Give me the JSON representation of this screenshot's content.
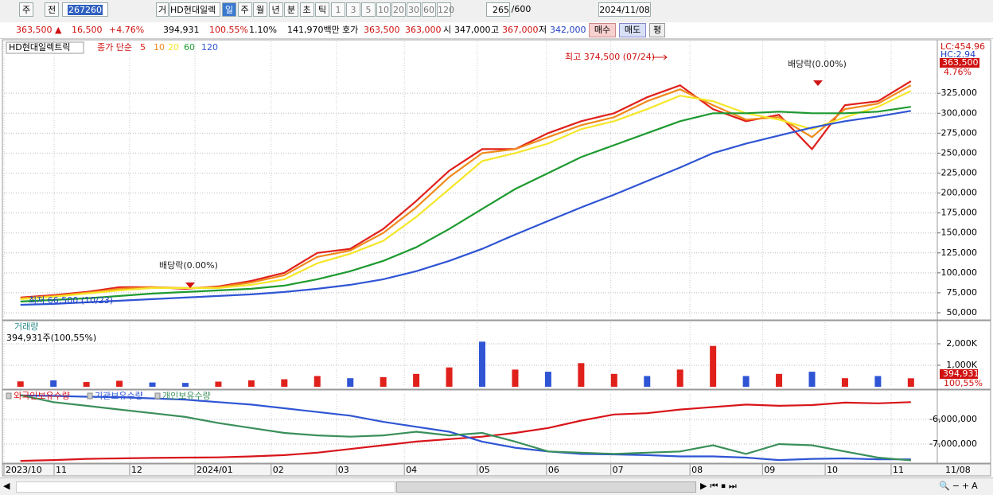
{
  "toolbar": {
    "period_button": "주",
    "full_button": "전",
    "code": "267260",
    "trade_button": "거",
    "name": "HD현대일렉",
    "periods": [
      "일",
      "주",
      "월",
      "년",
      "분",
      "초",
      "틱"
    ],
    "intervals": [
      "1",
      "3",
      "5",
      "10",
      "20",
      "30",
      "60",
      "120"
    ],
    "count": "265",
    "max_count": "/600",
    "date": "2024/11/08"
  },
  "quote": {
    "price": "363,500 ▲",
    "change": "16,500",
    "change_pct": "+4.76%",
    "volume": "394,931",
    "volume_ratio": "100.55%",
    "turnover": "1.10%",
    "amount": "141,970백만",
    "bid_label": "호가",
    "ask": "363,500",
    "bid": "363,000",
    "open_label": "시",
    "open": "347,000",
    "high_label": "고",
    "high": "367,000",
    "low_label": "저",
    "low": "342,000",
    "buy": "매수",
    "sell": "매도",
    "avg": "평"
  },
  "chart_data": [
    {
      "type": "line",
      "title": "HD현대일렉트릭",
      "subtitle": "종가 단순",
      "grid": true,
      "x": [
        0,
        1,
        2,
        3,
        4,
        5,
        6,
        7,
        8,
        9,
        10,
        11,
        12,
        13,
        14,
        15,
        16,
        17,
        18,
        19,
        20,
        21,
        22,
        23,
        24,
        25,
        26,
        27
      ],
      "xlim": [
        -0.5,
        27.8
      ],
      "xticks": [
        {
          "value": -0.5,
          "label": "2023/10"
        },
        {
          "value": 1.02,
          "label": "11"
        },
        {
          "value": 3.31,
          "label": "12"
        },
        {
          "value": 5.29,
          "label": "2024/01"
        },
        {
          "value": 7.6,
          "label": "02"
        },
        {
          "value": 9.58,
          "label": "03"
        },
        {
          "value": 11.64,
          "label": "04"
        },
        {
          "value": 13.85,
          "label": "05"
        },
        {
          "value": 15.95,
          "label": "06"
        },
        {
          "value": 17.9,
          "label": "07"
        },
        {
          "value": 20.3,
          "label": "08"
        },
        {
          "value": 22.5,
          "label": "09"
        },
        {
          "value": 24.4,
          "label": "10"
        },
        {
          "value": 26.4,
          "label": "11"
        }
      ],
      "last_date": "11/08",
      "ylim": [
        43000,
        390000
      ],
      "yticks": [
        {
          "value": 50000,
          "label": "50,000"
        },
        {
          "value": 75000,
          "label": "75,000"
        },
        {
          "value": 100000,
          "label": "100,000"
        },
        {
          "value": 125000,
          "label": "125,000"
        },
        {
          "value": 150000,
          "label": "150,000"
        },
        {
          "value": 175000,
          "label": "175,000"
        },
        {
          "value": 200000,
          "label": "200,000"
        },
        {
          "value": 225000,
          "label": "225,000"
        },
        {
          "value": 250000,
          "label": "250,000"
        },
        {
          "value": 275000,
          "label": "275,000"
        },
        {
          "value": 300000,
          "label": "300,000"
        },
        {
          "value": 325000,
          "label": "325,000"
        }
      ],
      "series": [
        {
          "name": "5",
          "color": "#e0201b",
          "values": [
            69000,
            72000,
            76000,
            82000,
            82000,
            80000,
            83000,
            90000,
            100000,
            125000,
            130000,
            155000,
            190000,
            228000,
            255000,
            255000,
            275000,
            290000,
            300000,
            320000,
            335000,
            305000,
            290000,
            298000,
            255000,
            310000,
            315000,
            340000
          ]
        },
        {
          "name": "10",
          "color": "#f08a1c",
          "values": [
            68000,
            71000,
            75000,
            80000,
            82000,
            81000,
            82000,
            88000,
            97000,
            120000,
            128000,
            150000,
            182000,
            220000,
            250000,
            255000,
            270000,
            285000,
            295000,
            315000,
            330000,
            310000,
            292000,
            295000,
            270000,
            305000,
            312000,
            335000
          ]
        },
        {
          "name": "20",
          "color": "#f5e62a",
          "values": [
            67000,
            70000,
            74000,
            78000,
            81000,
            81000,
            81000,
            85000,
            92000,
            112000,
            124000,
            140000,
            170000,
            205000,
            240000,
            250000,
            262000,
            280000,
            290000,
            305000,
            322000,
            315000,
            300000,
            292000,
            280000,
            295000,
            308000,
            328000
          ]
        },
        {
          "name": "60",
          "color": "#1e9a30",
          "values": [
            64000,
            66000,
            68000,
            71000,
            74000,
            76000,
            78000,
            80000,
            84000,
            92000,
            102000,
            115000,
            132000,
            155000,
            180000,
            205000,
            225000,
            245000,
            260000,
            275000,
            290000,
            300000,
            300000,
            302000,
            300000,
            300000,
            302000,
            308000
          ]
        },
        {
          "name": "120",
          "color": "#2f55d4",
          "values": [
            60000,
            61000,
            63000,
            65000,
            67000,
            69000,
            71000,
            73000,
            76000,
            80000,
            85000,
            92000,
            102000,
            115000,
            130000,
            148000,
            165000,
            182000,
            198000,
            215000,
            232000,
            250000,
            262000,
            272000,
            282000,
            290000,
            296000,
            303000
          ]
        }
      ],
      "right_labels": [
        "LC:454.96",
        "HC:2.94"
      ],
      "last_price_label": "363,500",
      "last_change_label": "4.76%",
      "annotations": [
        "최고 374,500 (07/24)",
        "최저 66,500 (10/23)",
        "배당락(0.00%)",
        "배당락(0.00%)"
      ]
    },
    {
      "type": "bar",
      "title": "거래량",
      "subtitle": "394,931주(100,55%)",
      "grid": true,
      "x": [
        0,
        1,
        2,
        3,
        4,
        5,
        6,
        7,
        8,
        9,
        10,
        11,
        12,
        13,
        14,
        15,
        16,
        17,
        18,
        19,
        20,
        21,
        22,
        23,
        24,
        25,
        26,
        27
      ],
      "xlim": [
        -0.5,
        27.8
      ],
      "ylim": [
        0,
        3000000
      ],
      "yticks": [
        {
          "value": 1000000,
          "label": "1,000K"
        },
        {
          "value": 2000000,
          "label": "2,000K"
        }
      ],
      "values": [
        250000,
        300000,
        220000,
        280000,
        200000,
        180000,
        240000,
        300000,
        350000,
        500000,
        400000,
        450000,
        600000,
        900000,
        2100000,
        800000,
        700000,
        1100000,
        600000,
        500000,
        800000,
        1900000,
        500000,
        600000,
        700000,
        400000,
        500000,
        394931
      ],
      "colors": [
        "#e0201b",
        "#2f55d4",
        "#e0201b",
        "#e0201b",
        "#2f55d4",
        "#2f55d4",
        "#e0201b",
        "#e0201b",
        "#e0201b",
        "#e0201b",
        "#2f55d4",
        "#e0201b",
        "#e0201b",
        "#e0201b",
        "#2f55d4",
        "#e0201b",
        "#2f55d4",
        "#e0201b",
        "#e0201b",
        "#2f55d4",
        "#e0201b",
        "#e0201b",
        "#2f55d4",
        "#e0201b",
        "#2f55d4",
        "#e0201b",
        "#2f55d4",
        "#e0201b"
      ],
      "last_value_label": "394,931",
      "last_ratio_label": "100,55%"
    },
    {
      "type": "line",
      "grid": true,
      "x": [
        0,
        1,
        2,
        3,
        4,
        5,
        6,
        7,
        8,
        9,
        10,
        11,
        12,
        13,
        14,
        15,
        16,
        17,
        18,
        19,
        20,
        21,
        22,
        23,
        24,
        25,
        26,
        27
      ],
      "xlim": [
        -0.5,
        27.8
      ],
      "ylim": [
        -7710000,
        -4968000
      ],
      "yticks": [
        {
          "value": -6000000,
          "label": "-6,000,000"
        },
        {
          "value": -7000000,
          "label": "-7,000,000"
        }
      ],
      "series": [
        {
          "name": "외국인보유수량",
          "color": "#d8141a",
          "values": [
            -7680000,
            -7650000,
            -7600000,
            -7580000,
            -7560000,
            -7550000,
            -7540000,
            -7500000,
            -7450000,
            -7350000,
            -7200000,
            -7050000,
            -6900000,
            -6800000,
            -6700000,
            -6550000,
            -6350000,
            -6050000,
            -5800000,
            -5750000,
            -5600000,
            -5500000,
            -5400000,
            -5450000,
            -5420000,
            -5320000,
            -5350000,
            -5300000
          ]
        },
        {
          "name": "기관보유수량",
          "color": "#2f55d4",
          "values": [
            -5030000,
            -5050000,
            -5080000,
            -5100000,
            -5150000,
            -5200000,
            -5300000,
            -5400000,
            -5550000,
            -5700000,
            -5850000,
            -6100000,
            -6300000,
            -6500000,
            -6900000,
            -7150000,
            -7300000,
            -7400000,
            -7420000,
            -7450000,
            -7500000,
            -7500000,
            -7550000,
            -7650000,
            -7600000,
            -7580000,
            -7620000,
            -7620000
          ]
        },
        {
          "name": "개인보유수량",
          "color": "#3a8f5a",
          "values": [
            -5020000,
            -5300000,
            -5450000,
            -5600000,
            -5750000,
            -5900000,
            -6150000,
            -6350000,
            -6550000,
            -6650000,
            -6700000,
            -6650000,
            -6500000,
            -6650000,
            -6550000,
            -6900000,
            -7300000,
            -7350000,
            -7400000,
            -7350000,
            -7300000,
            -7050000,
            -7400000,
            -7000000,
            -7050000,
            -7300000,
            -7550000,
            -7660000
          ]
        }
      ]
    }
  ]
}
